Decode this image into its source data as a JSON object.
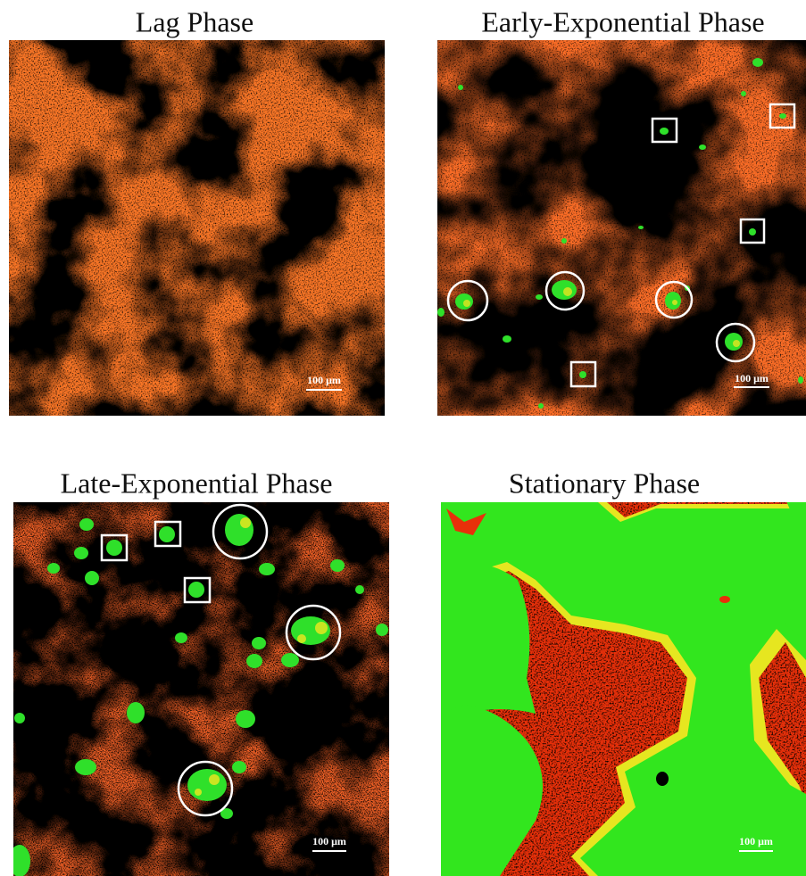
{
  "panels": [
    {
      "title": "Lag Phase",
      "scale_label": "100 μm"
    },
    {
      "title": "Early-Exponential Phase",
      "scale_label": "100 μm"
    },
    {
      "title": "Late-Exponential Phase",
      "scale_label": "100 μm"
    },
    {
      "title": "Stationary Phase",
      "scale_label": "100 μm"
    }
  ]
}
